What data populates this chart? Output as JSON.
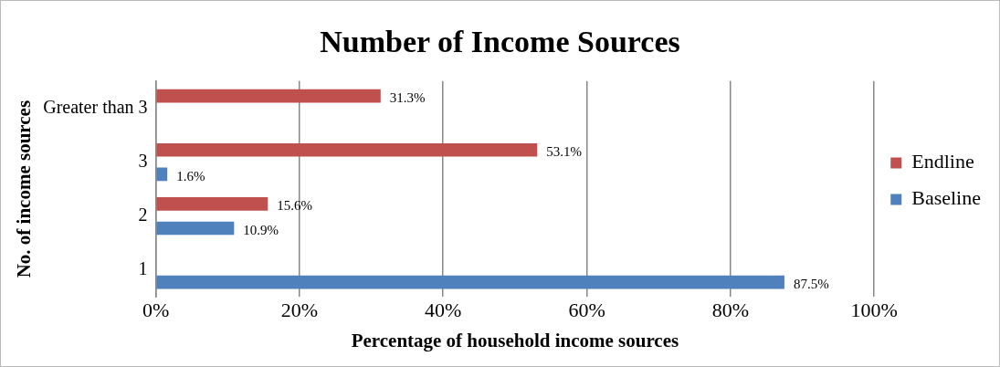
{
  "chart_data": {
    "type": "bar",
    "orientation": "horizontal",
    "title": "Number of Income Sources",
    "xlabel": "Percentage of household income sources",
    "ylabel": "No. of income sources",
    "categories": [
      "Greater than 3",
      "3",
      "2",
      "1"
    ],
    "series": [
      {
        "name": "Endline",
        "color": "#c0504d",
        "values": [
          31.3,
          53.1,
          15.6,
          null
        ],
        "value_labels": [
          "31.3%",
          "53.1%",
          "15.6%",
          null
        ]
      },
      {
        "name": "Baseline",
        "color": "#4f81bd",
        "values": [
          null,
          1.6,
          10.9,
          87.5
        ],
        "value_labels": [
          null,
          "1.6%",
          "10.9%",
          "87.5%"
        ]
      }
    ],
    "xlim": [
      0,
      100
    ],
    "xticks": [
      {
        "value": 0,
        "label": "0%"
      },
      {
        "value": 20,
        "label": "20%"
      },
      {
        "value": 40,
        "label": "40%"
      },
      {
        "value": 60,
        "label": "60%"
      },
      {
        "value": 80,
        "label": "80%"
      },
      {
        "value": 100,
        "label": "100%"
      }
    ],
    "grid": "x",
    "legend": "right"
  }
}
